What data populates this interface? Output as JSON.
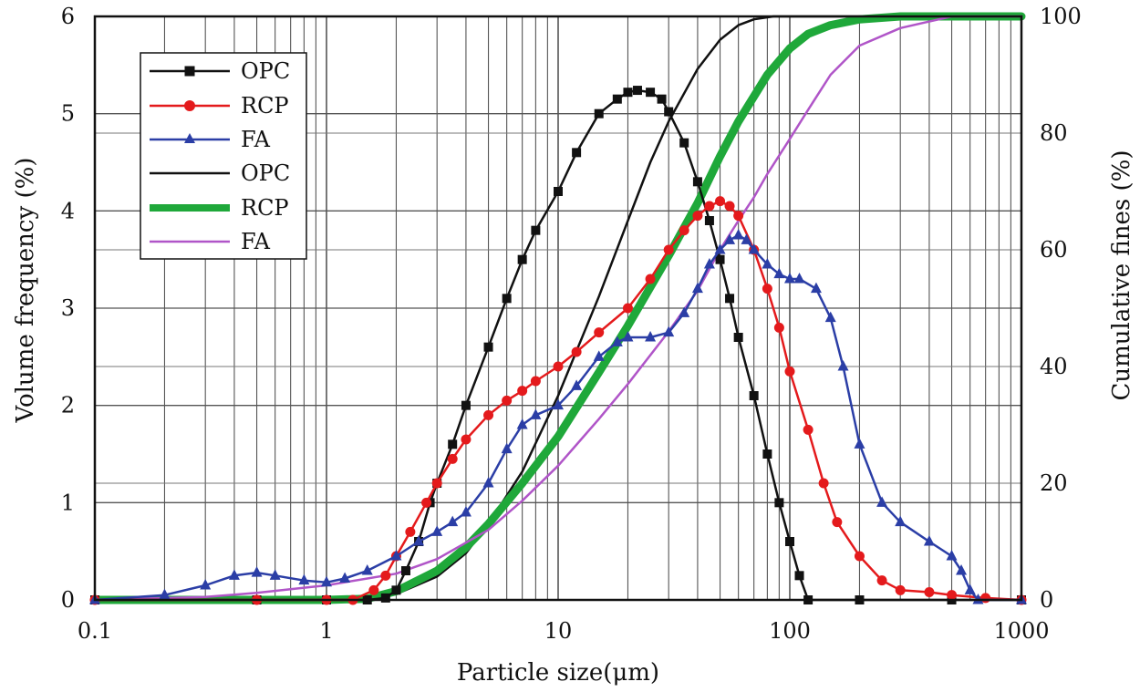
{
  "chart_data": {
    "type": "line",
    "xlabel": "Particle size(μm)",
    "ylabel_left": "Volume frequency (%)",
    "ylabel_right": "Cumulative fines (%)",
    "xscale": "log",
    "xlim": [
      0.1,
      1000
    ],
    "ylim_left": [
      0,
      6
    ],
    "ylim_right": [
      0,
      100
    ],
    "x_ticks": [
      0.1,
      1,
      10,
      100,
      1000
    ],
    "x_tick_labels": [
      "0.1",
      "1",
      "10",
      "100",
      "1000"
    ],
    "y_left_ticks": [
      0,
      1,
      2,
      3,
      4,
      5,
      6
    ],
    "y_left_tick_labels": [
      "0",
      "1",
      "2",
      "3",
      "4",
      "5",
      "6"
    ],
    "y_right_ticks": [
      0,
      20,
      40,
      60,
      80,
      100
    ],
    "y_right_tick_labels": [
      "0",
      "20",
      "40",
      "60",
      "80",
      "100"
    ],
    "grid": true,
    "legend_position": "top-left",
    "legend": [
      {
        "label": "OPC",
        "color": "#111111",
        "style": "line-square",
        "kind": "frequency"
      },
      {
        "label": "RCP",
        "color": "#e41a1c",
        "style": "line-circle",
        "kind": "frequency"
      },
      {
        "label": "FA",
        "color": "#2b3ea6",
        "style": "line-triangle",
        "kind": "frequency"
      },
      {
        "label": "OPC",
        "color": "#111111",
        "style": "thin-line",
        "kind": "cumulative"
      },
      {
        "label": "RCP",
        "color": "#1fa83a",
        "style": "thick-line",
        "kind": "cumulative"
      },
      {
        "label": "FA",
        "color": "#b055c8",
        "style": "thin-line",
        "kind": "cumulative"
      }
    ],
    "series": [
      {
        "name": "OPC",
        "kind": "frequency",
        "axis": "left",
        "color": "#111111",
        "marker": "square",
        "x": [
          0.1,
          0.5,
          1,
          1.5,
          1.8,
          2,
          2.2,
          2.5,
          2.8,
          3,
          3.5,
          4,
          5,
          6,
          7,
          8,
          10,
          12,
          15,
          18,
          20,
          22,
          25,
          28,
          30,
          35,
          40,
          45,
          50,
          55,
          60,
          70,
          80,
          90,
          100,
          110,
          120,
          200,
          500,
          1000
        ],
        "y": [
          0,
          0,
          0,
          0,
          0.02,
          0.1,
          0.3,
          0.6,
          1.0,
          1.2,
          1.6,
          2.0,
          2.6,
          3.1,
          3.5,
          3.8,
          4.2,
          4.6,
          5.0,
          5.15,
          5.22,
          5.24,
          5.22,
          5.15,
          5.02,
          4.7,
          4.3,
          3.9,
          3.5,
          3.1,
          2.7,
          2.1,
          1.5,
          1.0,
          0.6,
          0.25,
          0,
          0,
          0,
          0
        ]
      },
      {
        "name": "RCP",
        "kind": "frequency",
        "axis": "left",
        "color": "#e41a1c",
        "marker": "circle",
        "x": [
          0.1,
          0.5,
          1,
          1.3,
          1.6,
          1.8,
          2,
          2.3,
          2.7,
          3,
          3.5,
          4,
          5,
          6,
          7,
          8,
          10,
          12,
          15,
          20,
          25,
          30,
          35,
          40,
          45,
          50,
          55,
          60,
          70,
          80,
          90,
          100,
          120,
          140,
          160,
          200,
          250,
          300,
          400,
          500,
          700,
          1000
        ],
        "y": [
          0,
          0,
          0,
          0,
          0.1,
          0.25,
          0.45,
          0.7,
          1.0,
          1.2,
          1.45,
          1.65,
          1.9,
          2.05,
          2.15,
          2.25,
          2.4,
          2.55,
          2.75,
          3.0,
          3.3,
          3.6,
          3.8,
          3.95,
          4.05,
          4.1,
          4.05,
          3.95,
          3.6,
          3.2,
          2.8,
          2.35,
          1.75,
          1.2,
          0.8,
          0.45,
          0.2,
          0.1,
          0.08,
          0.05,
          0.02,
          0
        ]
      },
      {
        "name": "FA",
        "kind": "frequency",
        "axis": "left",
        "color": "#2b3ea6",
        "marker": "triangle",
        "x": [
          0.1,
          0.2,
          0.3,
          0.4,
          0.5,
          0.6,
          0.8,
          1,
          1.2,
          1.5,
          2,
          2.5,
          3,
          3.5,
          4,
          5,
          6,
          7,
          8,
          10,
          12,
          15,
          18,
          20,
          25,
          30,
          35,
          40,
          45,
          50,
          55,
          60,
          65,
          70,
          80,
          90,
          100,
          110,
          130,
          150,
          170,
          200,
          250,
          300,
          400,
          500,
          550,
          600,
          650,
          1000
        ],
        "y": [
          0,
          0.05,
          0.15,
          0.25,
          0.28,
          0.25,
          0.2,
          0.18,
          0.22,
          0.3,
          0.45,
          0.6,
          0.7,
          0.8,
          0.9,
          1.2,
          1.55,
          1.8,
          1.9,
          2.0,
          2.2,
          2.5,
          2.65,
          2.7,
          2.7,
          2.75,
          2.95,
          3.2,
          3.45,
          3.6,
          3.7,
          3.75,
          3.7,
          3.6,
          3.45,
          3.35,
          3.3,
          3.3,
          3.2,
          2.9,
          2.4,
          1.6,
          1.0,
          0.8,
          0.6,
          0.45,
          0.3,
          0.1,
          0,
          0
        ]
      },
      {
        "name": "OPC",
        "kind": "cumulative",
        "axis": "right",
        "color": "#111111",
        "width": 2.5,
        "x": [
          0.1,
          1,
          1.5,
          2,
          3,
          4,
          5,
          7,
          10,
          15,
          20,
          25,
          30,
          40,
          50,
          60,
          70,
          85,
          100,
          1000
        ],
        "y": [
          0,
          0,
          0.2,
          1,
          4,
          8,
          13,
          22,
          35,
          52,
          65,
          75,
          82,
          91,
          96,
          98.5,
          99.5,
          100,
          100,
          100
        ]
      },
      {
        "name": "RCP",
        "kind": "cumulative",
        "axis": "right",
        "color": "#1fa83a",
        "width": 9,
        "x": [
          0.1,
          1,
          1.5,
          2,
          3,
          4,
          5,
          7,
          10,
          15,
          20,
          30,
          40,
          50,
          60,
          80,
          100,
          120,
          150,
          200,
          300,
          500,
          1000
        ],
        "y": [
          0,
          0,
          0.2,
          1.5,
          5,
          9,
          13,
          20,
          28,
          39,
          47,
          59,
          68,
          76,
          82,
          90,
          94.5,
          97,
          98.5,
          99.5,
          100,
          100,
          100
        ]
      },
      {
        "name": "FA",
        "kind": "cumulative",
        "axis": "right",
        "color": "#b055c8",
        "width": 2.5,
        "x": [
          0.1,
          0.3,
          0.5,
          1,
          2,
          3,
          5,
          7,
          10,
          15,
          20,
          30,
          40,
          50,
          60,
          70,
          80,
          100,
          120,
          150,
          200,
          300,
          500,
          1000
        ],
        "y": [
          0,
          0.5,
          1.2,
          2.5,
          4.5,
          7,
          12,
          17,
          23,
          31,
          37,
          46,
          53,
          60,
          65,
          69,
          73,
          79,
          84,
          90,
          95,
          98,
          100,
          100
        ]
      }
    ]
  }
}
